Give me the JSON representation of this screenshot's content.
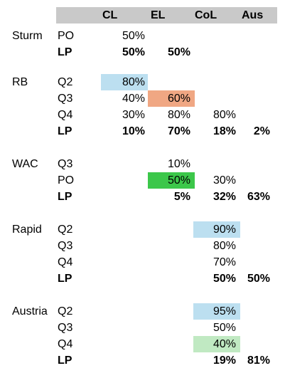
{
  "header": {
    "cl": "CL",
    "el": "EL",
    "col": "CoL",
    "aus": "Aus"
  },
  "colors": {
    "header_bg": "#c9c9c9",
    "light_blue": "#bcdff0",
    "orange": "#f0a783",
    "green": "#3cc74a",
    "light_green": "#c0e9c2"
  },
  "groups": [
    {
      "name": "Sturm",
      "rows": [
        {
          "label": "PO",
          "cl": "50%",
          "el": "",
          "col": "",
          "aus": "",
          "bold": false
        },
        {
          "label": "LP",
          "cl": "50%",
          "el": "50%",
          "col": "",
          "aus": "",
          "bold": true
        }
      ]
    },
    {
      "name": "RB",
      "rows": [
        {
          "label": "Q2",
          "cl": "80%",
          "el": "",
          "col": "",
          "aus": "",
          "bold": false
        },
        {
          "label": "Q3",
          "cl": "40%",
          "el": "60%",
          "col": "",
          "aus": "",
          "bold": false
        },
        {
          "label": "Q4",
          "cl": "30%",
          "el": "80%",
          "col": "80%",
          "aus": "",
          "bold": false
        },
        {
          "label": "LP",
          "cl": "10%",
          "el": "70%",
          "col": "18%",
          "aus": "2%",
          "bold": true
        }
      ]
    },
    {
      "name": "WAC",
      "rows": [
        {
          "label": "Q3",
          "cl": "",
          "el": "10%",
          "col": "",
          "aus": "",
          "bold": false
        },
        {
          "label": "PO",
          "cl": "",
          "el": "50%",
          "col": "30%",
          "aus": "",
          "bold": false
        },
        {
          "label": "LP",
          "cl": "",
          "el": "5%",
          "col": "32%",
          "aus": "63%",
          "bold": true
        }
      ]
    },
    {
      "name": "Rapid",
      "rows": [
        {
          "label": "Q2",
          "cl": "",
          "el": "",
          "col": "90%",
          "aus": "",
          "bold": false
        },
        {
          "label": "Q3",
          "cl": "",
          "el": "",
          "col": "80%",
          "aus": "",
          "bold": false
        },
        {
          "label": "Q4",
          "cl": "",
          "el": "",
          "col": "70%",
          "aus": "",
          "bold": false
        },
        {
          "label": "LP",
          "cl": "",
          "el": "",
          "col": "50%",
          "aus": "50%",
          "bold": true
        }
      ]
    },
    {
      "name": "Austria",
      "rows": [
        {
          "label": "Q2",
          "cl": "",
          "el": "",
          "col": "95%",
          "aus": "",
          "bold": false
        },
        {
          "label": "Q3",
          "cl": "",
          "el": "",
          "col": "50%",
          "aus": "",
          "bold": false
        },
        {
          "label": "Q4",
          "cl": "",
          "el": "",
          "col": "40%",
          "aus": "",
          "bold": false
        },
        {
          "label": "LP",
          "cl": "",
          "el": "",
          "col": "19%",
          "aus": "81%",
          "bold": true
        }
      ]
    }
  ]
}
